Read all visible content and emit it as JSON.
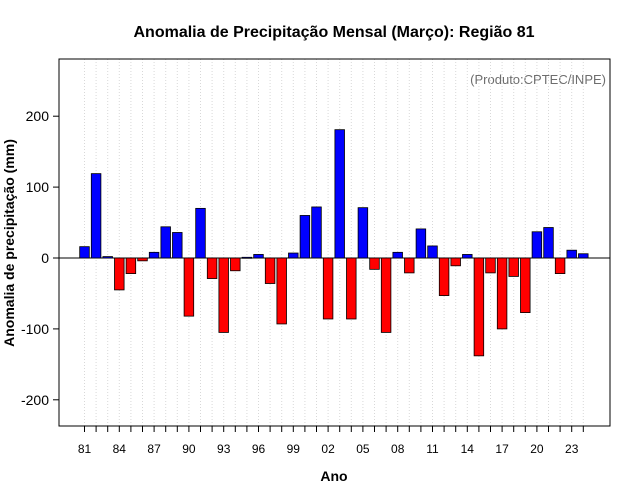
{
  "chart_data": {
    "type": "bar",
    "title": "Anomalia de Precipitação Mensal (Março): Região 81",
    "xlabel": "Ano",
    "ylabel": "Anomalia de precipitação (mm)",
    "annotation": "(Produto:CPTEC/INPE)",
    "ylim": [
      -240,
      280
    ],
    "yticks": [
      -200,
      -100,
      0,
      100,
      200
    ],
    "grid": true,
    "colors": {
      "positive": "#0000ff",
      "negative": "#ff0000"
    },
    "categories": [
      "81",
      "82",
      "83",
      "84",
      "85",
      "86",
      "87",
      "88",
      "89",
      "90",
      "91",
      "92",
      "93",
      "94",
      "95",
      "96",
      "97",
      "98",
      "99",
      "00",
      "01",
      "02",
      "03",
      "04",
      "05",
      "06",
      "07",
      "08",
      "09",
      "10",
      "11",
      "12",
      "13",
      "14",
      "15",
      "16",
      "17",
      "18",
      "19",
      "20",
      "21",
      "22",
      "23",
      "24"
    ],
    "xtick_labels": [
      "81",
      "84",
      "87",
      "90",
      "93",
      "96",
      "99",
      "02",
      "05",
      "08",
      "11",
      "14",
      "17",
      "20",
      "23"
    ],
    "values": [
      16,
      119,
      2,
      -45,
      -22,
      -4,
      8,
      44,
      36,
      -82,
      70,
      -29,
      -105,
      -18,
      1,
      5,
      -36,
      -93,
      7,
      60,
      72,
      -86,
      181,
      -86,
      71,
      -16,
      -105,
      8,
      -21,
      41,
      17,
      -53,
      -11,
      5,
      -138,
      -21,
      -100,
      -26,
      -77,
      37,
      43,
      -22,
      11,
      6
    ]
  }
}
